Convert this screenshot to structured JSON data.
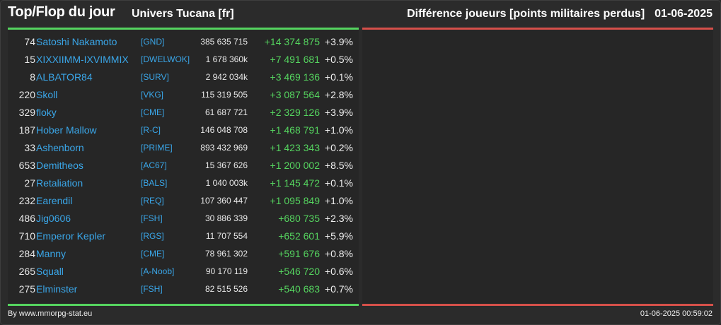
{
  "header": {
    "title": "Top/Flop du jour",
    "universe": "Univers Tucana [fr]",
    "metric": "Différence joueurs [points militaires perdus]",
    "date": "01-06-2025"
  },
  "colors": {
    "positive": "#55d45f",
    "negative": "#d6504a",
    "link": "#3aa6e8"
  },
  "top": [
    {
      "rank": "74",
      "name": "Satoshi Nakamoto",
      "alliance": "[GND]",
      "points": "385 635 715",
      "diff": "+14 374 875",
      "pct": "+3.9%"
    },
    {
      "rank": "15",
      "name": "XIXXIIMM-IXVIMMIX",
      "alliance": "[DWELWOK]",
      "points": "1 678 360k",
      "diff": "+7 491 681",
      "pct": "+0.5%"
    },
    {
      "rank": "8",
      "name": "ALBATOR84",
      "alliance": "[SURV]",
      "points": "2 942 034k",
      "diff": "+3 469 136",
      "pct": "+0.1%"
    },
    {
      "rank": "220",
      "name": "Skoll",
      "alliance": "[VKG]",
      "points": "115 319 505",
      "diff": "+3 087 564",
      "pct": "+2.8%"
    },
    {
      "rank": "329",
      "name": "floky",
      "alliance": "[CME]",
      "points": "61 687 721",
      "diff": "+2 329 126",
      "pct": "+3.9%"
    },
    {
      "rank": "187",
      "name": "Hober Mallow",
      "alliance": "[R-C]",
      "points": "146 048 708",
      "diff": "+1 468 791",
      "pct": "+1.0%"
    },
    {
      "rank": "33",
      "name": "Ashenborn",
      "alliance": "[PRIME]",
      "points": "893 432 969",
      "diff": "+1 423 343",
      "pct": "+0.2%"
    },
    {
      "rank": "653",
      "name": "Demitheos",
      "alliance": "[AC67]",
      "points": "15 367 626",
      "diff": "+1 200 002",
      "pct": "+8.5%"
    },
    {
      "rank": "27",
      "name": "Retaliation",
      "alliance": "[BALS]",
      "points": "1 040 003k",
      "diff": "+1 145 472",
      "pct": "+0.1%"
    },
    {
      "rank": "232",
      "name": "Earendil",
      "alliance": "[REQ]",
      "points": "107 360 447",
      "diff": "+1 095 849",
      "pct": "+1.0%"
    },
    {
      "rank": "486",
      "name": "Jig0606",
      "alliance": "[FSH]",
      "points": "30 886 339",
      "diff": "+680 735",
      "pct": "+2.3%"
    },
    {
      "rank": "710",
      "name": "Emperor Kepler",
      "alliance": "[RGS]",
      "points": "11 707 554",
      "diff": "+652 601",
      "pct": "+5.9%"
    },
    {
      "rank": "284",
      "name": "Manny",
      "alliance": "[CME]",
      "points": "78 961 302",
      "diff": "+591 676",
      "pct": "+0.8%"
    },
    {
      "rank": "265",
      "name": "Squall",
      "alliance": "[A-Noob]",
      "points": "90 170 119",
      "diff": "+546 720",
      "pct": "+0.6%"
    },
    {
      "rank": "275",
      "name": "Elminster",
      "alliance": "[FSH]",
      "points": "82 515 526",
      "diff": "+540 683",
      "pct": "+0.7%"
    }
  ],
  "flop": [],
  "footer": {
    "credit": "By www.mmorpg-stat.eu",
    "timestamp": "01-06-2025 00:59:02"
  }
}
